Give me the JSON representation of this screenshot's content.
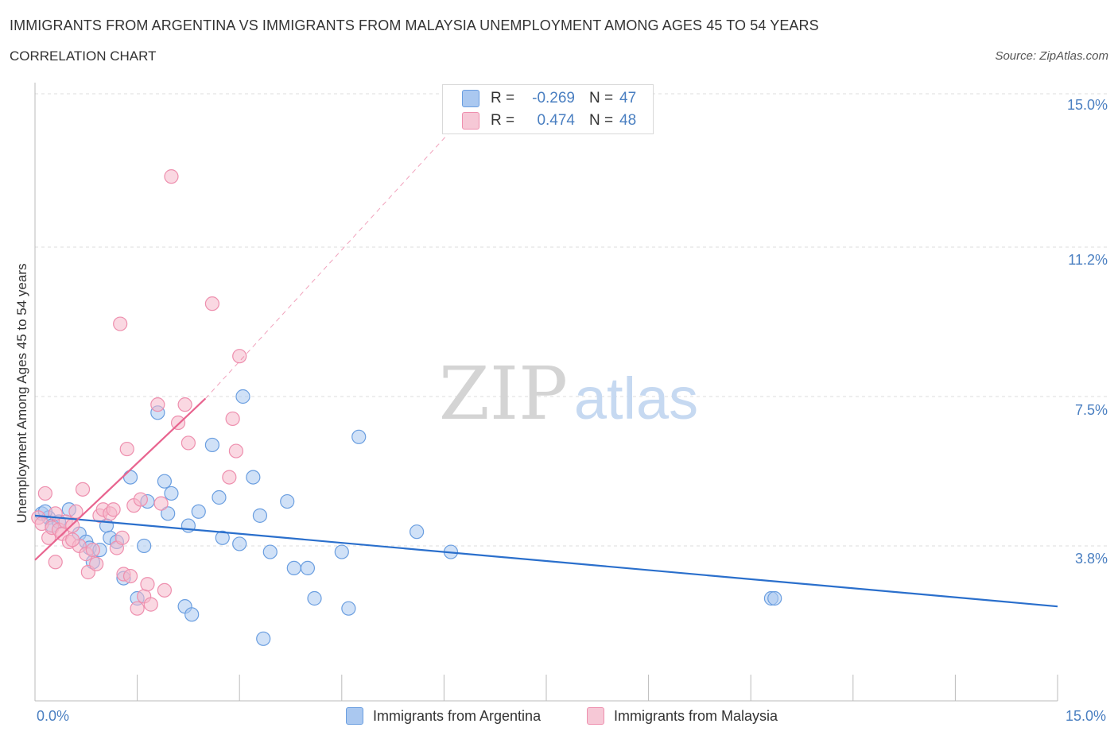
{
  "title": "IMMIGRANTS FROM ARGENTINA VS IMMIGRANTS FROM MALAYSIA UNEMPLOYMENT AMONG AGES 45 TO 54 YEARS",
  "subtitle": "CORRELATION CHART",
  "source": "Source: ZipAtlas.com",
  "watermark": {
    "zip": "ZIP",
    "atlas": "atlas"
  },
  "legend": {
    "rows": [
      {
        "r_label": "R =",
        "r_value": "-0.269",
        "n_label": "N =",
        "n_value": "47"
      },
      {
        "r_label": "R =",
        "r_value": "0.474",
        "n_label": "N =",
        "n_value": "48"
      }
    ]
  },
  "colors": {
    "argentina_fill": "#aac8f0",
    "argentina_stroke": "#6a9ee0",
    "argentina_line": "#2a6fcc",
    "malaysia_fill": "#f6b8cb",
    "malaysia_stroke": "#ee8fae",
    "malaysia_line": "#e8648f",
    "tick_label": "#4a7fc1",
    "grid": "#dddddd"
  },
  "chart_data": {
    "type": "scatter",
    "title": "IMMIGRANTS FROM ARGENTINA VS IMMIGRANTS FROM MALAYSIA UNEMPLOYMENT AMONG AGES 45 TO 54 YEARS",
    "xlabel": "",
    "ylabel": "Unemployment Among Ages 45 to 54 years",
    "xlim": [
      0,
      15
    ],
    "ylim": [
      0,
      15
    ],
    "x_tick_labels": [
      "0.0%",
      "15.0%"
    ],
    "y_ticks": [
      {
        "value": 3.8,
        "label": "3.8%"
      },
      {
        "value": 7.5,
        "label": "7.5%"
      },
      {
        "value": 11.2,
        "label": "11.2%"
      },
      {
        "value": 15.0,
        "label": "15.0%"
      }
    ],
    "series": [
      {
        "name": "Immigrants from Argentina",
        "points": [
          [
            0.1,
            4.6
          ],
          [
            0.2,
            4.5
          ],
          [
            0.25,
            4.3
          ],
          [
            0.35,
            4.4
          ],
          [
            0.5,
            4.7
          ],
          [
            0.65,
            4.1
          ],
          [
            0.75,
            3.9
          ],
          [
            0.8,
            3.75
          ],
          [
            0.85,
            3.4
          ],
          [
            0.95,
            3.7
          ],
          [
            1.05,
            4.3
          ],
          [
            1.1,
            4.0
          ],
          [
            1.2,
            3.9
          ],
          [
            1.3,
            3.0
          ],
          [
            1.4,
            5.5
          ],
          [
            1.5,
            2.5
          ],
          [
            1.6,
            3.8
          ],
          [
            1.65,
            4.9
          ],
          [
            1.8,
            7.1
          ],
          [
            1.9,
            5.4
          ],
          [
            1.95,
            4.6
          ],
          [
            2.0,
            5.1
          ],
          [
            2.2,
            2.3
          ],
          [
            2.25,
            4.3
          ],
          [
            2.3,
            2.1
          ],
          [
            2.4,
            4.65
          ],
          [
            2.6,
            6.3
          ],
          [
            2.7,
            5.0
          ],
          [
            2.75,
            4.0
          ],
          [
            3.0,
            3.85
          ],
          [
            3.05,
            7.5
          ],
          [
            3.2,
            5.5
          ],
          [
            3.3,
            4.55
          ],
          [
            3.35,
            1.5
          ],
          [
            3.45,
            3.65
          ],
          [
            3.7,
            4.9
          ],
          [
            3.8,
            3.25
          ],
          [
            4.0,
            3.25
          ],
          [
            4.1,
            2.5
          ],
          [
            4.5,
            3.65
          ],
          [
            4.6,
            2.25
          ],
          [
            4.75,
            6.5
          ],
          [
            5.6,
            4.15
          ],
          [
            6.1,
            3.65
          ],
          [
            10.8,
            2.5
          ],
          [
            10.85,
            2.5
          ],
          [
            0.15,
            4.65
          ]
        ]
      },
      {
        "name": "Immigrants from Malaysia",
        "points": [
          [
            0.05,
            4.5
          ],
          [
            0.1,
            4.35
          ],
          [
            0.15,
            5.1
          ],
          [
            0.2,
            4.0
          ],
          [
            0.25,
            4.25
          ],
          [
            0.3,
            3.4
          ],
          [
            0.35,
            4.2
          ],
          [
            0.4,
            4.1
          ],
          [
            0.45,
            4.4
          ],
          [
            0.5,
            3.9
          ],
          [
            0.55,
            4.3
          ],
          [
            0.6,
            4.65
          ],
          [
            0.65,
            3.8
          ],
          [
            0.7,
            5.2
          ],
          [
            0.75,
            3.6
          ],
          [
            0.78,
            3.15
          ],
          [
            0.85,
            3.7
          ],
          [
            0.9,
            3.35
          ],
          [
            0.95,
            4.55
          ],
          [
            1.0,
            4.7
          ],
          [
            1.1,
            4.6
          ],
          [
            1.15,
            4.7
          ],
          [
            1.2,
            3.75
          ],
          [
            1.25,
            9.3
          ],
          [
            1.3,
            3.1
          ],
          [
            1.35,
            6.2
          ],
          [
            1.4,
            3.05
          ],
          [
            1.45,
            4.8
          ],
          [
            1.5,
            2.25
          ],
          [
            1.55,
            4.95
          ],
          [
            1.6,
            2.55
          ],
          [
            1.65,
            2.85
          ],
          [
            1.7,
            2.35
          ],
          [
            1.8,
            7.3
          ],
          [
            1.85,
            4.85
          ],
          [
            1.9,
            2.7
          ],
          [
            2.0,
            12.95
          ],
          [
            2.1,
            6.85
          ],
          [
            2.2,
            7.3
          ],
          [
            2.25,
            6.35
          ],
          [
            2.6,
            9.8
          ],
          [
            2.85,
            5.5
          ],
          [
            2.9,
            6.95
          ],
          [
            2.95,
            6.15
          ],
          [
            3.0,
            8.5
          ],
          [
            1.28,
            4.0
          ],
          [
            0.55,
            3.95
          ],
          [
            0.3,
            4.6
          ]
        ]
      }
    ],
    "trendlines": [
      {
        "series": "Immigrants from Argentina",
        "x": [
          0.0,
          15.0
        ],
        "y": [
          4.55,
          2.3
        ],
        "style": "solid"
      },
      {
        "series": "Immigrants from Malaysia",
        "x": [
          0.0,
          2.5
        ],
        "y": [
          3.45,
          7.45
        ],
        "style": "solid"
      },
      {
        "series": "Immigrants from Malaysia",
        "x": [
          2.5,
          6.6
        ],
        "y": [
          7.45,
          15.0
        ],
        "style": "dashed"
      }
    ]
  }
}
